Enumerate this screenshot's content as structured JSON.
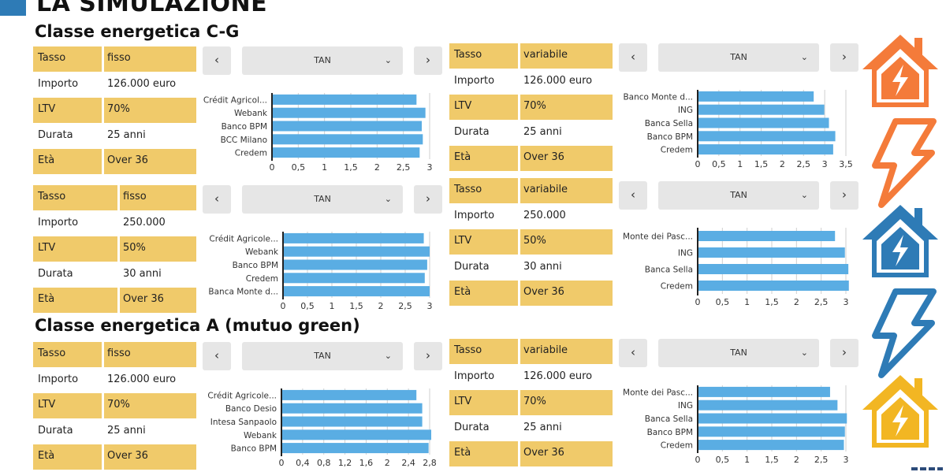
{
  "page": {
    "title": "LA SIMULAZIONE"
  },
  "sections": [
    {
      "title": "Classe energetica C-G"
    },
    {
      "title": "Classe energetica A (mutuo green)"
    }
  ],
  "colors": {
    "accent_yellow": "#f0ca6a",
    "bar_blue": "#5aade3",
    "house_orange": "#f47b3a",
    "house_blue": "#2e7bb6",
    "house_yellow": "#f2b623"
  },
  "icons": [
    "house-bolt-orange-icon",
    "bolt-orange-icon",
    "house-bolt-blue-icon",
    "bolt-blue-icon",
    "house-bolt-yellow-icon"
  ],
  "panels": [
    {
      "table": {
        "tasso_label": "Tasso",
        "tasso": "fisso",
        "importo_label": "Importo",
        "importo": "126.000 euro",
        "ltv_label": "LTV",
        "ltv": "70%",
        "durata_label": "Durata",
        "durata": "25 anni",
        "eta_label": "Età",
        "eta": "Over 36"
      },
      "control": {
        "prev": "‹",
        "next": "›",
        "select": "TAN",
        "chevron": "⌄"
      }
    },
    {
      "table": {
        "tasso_label": "Tasso",
        "tasso": "variabile",
        "importo_label": "Importo",
        "importo": "126.000 euro",
        "ltv_label": "LTV",
        "ltv": "70%",
        "durata_label": "Durata",
        "durata": "25 anni",
        "eta_label": "Età",
        "eta": "Over 36"
      },
      "control": {
        "prev": "‹",
        "next": "›",
        "select": "TAN",
        "chevron": "⌄"
      }
    },
    {
      "table": {
        "tasso_label": "Tasso",
        "tasso": "fisso",
        "importo_label": "Importo",
        "importo": "250.000",
        "ltv_label": "LTV",
        "ltv": "50%",
        "durata_label": "Durata",
        "durata": "30 anni",
        "eta_label": "Età",
        "eta": "Over 36"
      },
      "control": {
        "prev": "‹",
        "next": "›",
        "select": "TAN",
        "chevron": "⌄"
      }
    },
    {
      "table": {
        "tasso_label": "Tasso",
        "tasso": "variabile",
        "importo_label": "Importo",
        "importo": "250.000",
        "ltv_label": "LTV",
        "ltv": "50%",
        "durata_label": "Durata",
        "durata": "30 anni",
        "eta_label": "Età",
        "eta": "Over 36"
      },
      "control": {
        "prev": "‹",
        "next": "›",
        "select": "TAN",
        "chevron": "⌄"
      }
    },
    {
      "table": {
        "tasso_label": "Tasso",
        "tasso": "fisso",
        "importo_label": "Importo",
        "importo": "126.000 euro",
        "ltv_label": "LTV",
        "ltv": "70%",
        "durata_label": "Durata",
        "durata": "25 anni",
        "eta_label": "Età",
        "eta": "Over 36"
      },
      "control": {
        "prev": "‹",
        "next": "›",
        "select": "TAN",
        "chevron": "⌄"
      }
    },
    {
      "table": {
        "tasso_label": "Tasso",
        "tasso": "variabile",
        "importo_label": "Importo",
        "importo": "126.000 euro",
        "ltv_label": "LTV",
        "ltv": "70%",
        "durata_label": "Durata",
        "durata": "25 anni",
        "eta_label": "Età",
        "eta": "Over 36"
      },
      "control": {
        "prev": "‹",
        "next": "›",
        "select": "TAN",
        "chevron": "⌄"
      }
    }
  ],
  "chart_data": [
    {
      "type": "bar",
      "orientation": "horizontal",
      "categories": [
        "Crédit Agricol...",
        "Webank",
        "Banco BPM",
        "BCC Milano",
        "Credem"
      ],
      "values": [
        2.75,
        2.92,
        2.85,
        2.87,
        2.81
      ],
      "xlim": [
        0,
        3
      ],
      "xticks": [
        "0",
        "0,5",
        "1",
        "1,5",
        "2",
        "2,5",
        "3"
      ],
      "grid": true
    },
    {
      "type": "bar",
      "orientation": "horizontal",
      "categories": [
        "Banco Monte d...",
        "ING",
        "Banca Sella",
        "Banco BPM",
        "Credem"
      ],
      "values": [
        2.74,
        2.99,
        3.1,
        3.25,
        3.2
      ],
      "xlim": [
        0,
        3.5
      ],
      "xticks": [
        "0",
        "0,5",
        "1",
        "1,5",
        "2",
        "2,5",
        "3",
        "3,5"
      ],
      "grid": true
    },
    {
      "type": "bar",
      "orientation": "horizontal",
      "categories": [
        "Crédit Agricole...",
        "Webank",
        "Banco BPM",
        "Credem",
        "Banca Monte d..."
      ],
      "values": [
        2.88,
        3.0,
        2.95,
        2.9,
        3.0
      ],
      "xlim": [
        0,
        3
      ],
      "xticks": [
        "0",
        "0,5",
        "1",
        "1,5",
        "2",
        "2,5",
        "3"
      ],
      "grid": true
    },
    {
      "type": "bar",
      "orientation": "horizontal",
      "categories": [
        "Monte dei Pasc...",
        "ING",
        "Banca Sella",
        "Credem"
      ],
      "values": [
        2.78,
        2.98,
        3.05,
        3.06
      ],
      "xlim": [
        0,
        3
      ],
      "xticks": [
        "0",
        "0,5",
        "1",
        "1,5",
        "2",
        "2,5",
        "3"
      ],
      "grid": true
    },
    {
      "type": "bar",
      "orientation": "horizontal",
      "categories": [
        "Crédit Agricole...",
        "Banco Desio",
        "Intesa Sanpaolo",
        "Webank",
        "Banco BPM"
      ],
      "values": [
        2.55,
        2.66,
        2.66,
        2.83,
        2.78
      ],
      "xlim": [
        0,
        2.8
      ],
      "xticks": [
        "0",
        "0,4",
        "0,8",
        "1,2",
        "1,6",
        "2",
        "2,4",
        "2,8"
      ],
      "grid": true
    },
    {
      "type": "bar",
      "orientation": "horizontal",
      "categories": [
        "Monte dei Pasc...",
        "ING",
        "Banca Sella",
        "Banco BPM",
        "Credem"
      ],
      "values": [
        2.68,
        2.83,
        3.02,
        2.98,
        2.96
      ],
      "xlim": [
        0,
        3
      ],
      "xticks": [
        "0",
        "0,5",
        "1",
        "1,5",
        "2",
        "2,5",
        "3"
      ],
      "grid": true
    }
  ]
}
